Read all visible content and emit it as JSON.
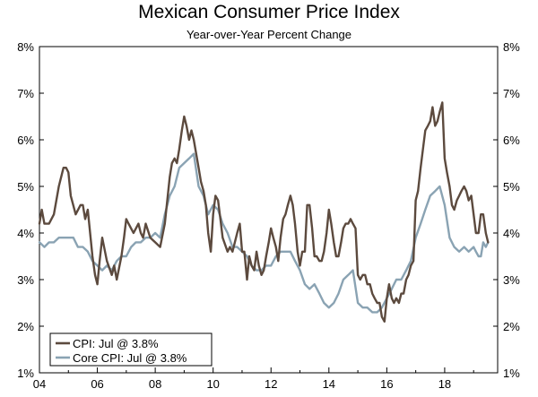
{
  "chart_data": {
    "type": "line",
    "title": "Mexican Consumer Price Index",
    "subtitle": "Year-over-Year Percent Change",
    "xlabel": "",
    "ylabel": "",
    "xlim": [
      2004.0,
      2019.83
    ],
    "ylim": [
      1,
      8
    ],
    "x_ticks": [
      {
        "value": 2004,
        "label": "04"
      },
      {
        "value": 2006,
        "label": "06"
      },
      {
        "value": 2008,
        "label": "08"
      },
      {
        "value": 2010,
        "label": "10"
      },
      {
        "value": 2012,
        "label": "12"
      },
      {
        "value": 2014,
        "label": "14"
      },
      {
        "value": 2016,
        "label": "16"
      },
      {
        "value": 2018,
        "label": "18"
      }
    ],
    "y_ticks": [
      1,
      2,
      3,
      4,
      5,
      6,
      7,
      8
    ],
    "y_tick_labels": [
      "1%",
      "2%",
      "3%",
      "4%",
      "5%",
      "6%",
      "7%",
      "8%"
    ],
    "legend_position": "bottom-left",
    "series": [
      {
        "name": "CPI: Jul @ 3.8%",
        "color": "#5c4a3e",
        "points": [
          [
            2004.0,
            4.2
          ],
          [
            2004.08,
            4.5
          ],
          [
            2004.17,
            4.2
          ],
          [
            2004.33,
            4.2
          ],
          [
            2004.5,
            4.4
          ],
          [
            2004.67,
            5.0
          ],
          [
            2004.83,
            5.4
          ],
          [
            2004.92,
            5.4
          ],
          [
            2005.0,
            5.3
          ],
          [
            2005.08,
            4.8
          ],
          [
            2005.25,
            4.4
          ],
          [
            2005.42,
            4.6
          ],
          [
            2005.5,
            4.6
          ],
          [
            2005.58,
            4.3
          ],
          [
            2005.67,
            4.5
          ],
          [
            2005.83,
            3.5
          ],
          [
            2005.92,
            3.1
          ],
          [
            2006.0,
            2.9
          ],
          [
            2006.08,
            3.4
          ],
          [
            2006.17,
            3.9
          ],
          [
            2006.33,
            3.4
          ],
          [
            2006.5,
            3.1
          ],
          [
            2006.58,
            3.3
          ],
          [
            2006.67,
            3.0
          ],
          [
            2006.83,
            3.5
          ],
          [
            2006.92,
            3.9
          ],
          [
            2007.0,
            4.3
          ],
          [
            2007.08,
            4.2
          ],
          [
            2007.25,
            4.0
          ],
          [
            2007.42,
            4.2
          ],
          [
            2007.5,
            4.0
          ],
          [
            2007.58,
            3.9
          ],
          [
            2007.67,
            4.2
          ],
          [
            2007.83,
            3.9
          ],
          [
            2008.0,
            3.8
          ],
          [
            2008.17,
            3.7
          ],
          [
            2008.33,
            4.2
          ],
          [
            2008.5,
            5.2
          ],
          [
            2008.58,
            5.5
          ],
          [
            2008.67,
            5.6
          ],
          [
            2008.75,
            5.5
          ],
          [
            2008.83,
            5.8
          ],
          [
            2008.92,
            6.2
          ],
          [
            2009.0,
            6.5
          ],
          [
            2009.08,
            6.3
          ],
          [
            2009.17,
            6.0
          ],
          [
            2009.25,
            6.2
          ],
          [
            2009.33,
            6.0
          ],
          [
            2009.5,
            5.4
          ],
          [
            2009.58,
            5.1
          ],
          [
            2009.67,
            4.9
          ],
          [
            2009.75,
            4.6
          ],
          [
            2009.83,
            4.0
          ],
          [
            2009.92,
            3.6
          ],
          [
            2010.0,
            4.4
          ],
          [
            2010.08,
            4.8
          ],
          [
            2010.17,
            4.7
          ],
          [
            2010.25,
            4.3
          ],
          [
            2010.33,
            3.9
          ],
          [
            2010.5,
            3.6
          ],
          [
            2010.58,
            3.7
          ],
          [
            2010.67,
            3.6
          ],
          [
            2010.75,
            3.8
          ],
          [
            2010.83,
            4.0
          ],
          [
            2010.92,
            4.2
          ],
          [
            2011.0,
            3.6
          ],
          [
            2011.08,
            3.6
          ],
          [
            2011.17,
            3.0
          ],
          [
            2011.25,
            3.5
          ],
          [
            2011.33,
            3.3
          ],
          [
            2011.42,
            3.2
          ],
          [
            2011.5,
            3.6
          ],
          [
            2011.58,
            3.3
          ],
          [
            2011.67,
            3.1
          ],
          [
            2011.75,
            3.2
          ],
          [
            2011.83,
            3.5
          ],
          [
            2011.92,
            3.8
          ],
          [
            2012.0,
            4.1
          ],
          [
            2012.08,
            3.9
          ],
          [
            2012.17,
            3.7
          ],
          [
            2012.25,
            3.4
          ],
          [
            2012.33,
            3.9
          ],
          [
            2012.42,
            4.3
          ],
          [
            2012.5,
            4.4
          ],
          [
            2012.58,
            4.6
          ],
          [
            2012.67,
            4.8
          ],
          [
            2012.75,
            4.6
          ],
          [
            2012.83,
            4.2
          ],
          [
            2012.92,
            3.6
          ],
          [
            2013.0,
            3.3
          ],
          [
            2013.08,
            3.6
          ],
          [
            2013.17,
            3.6
          ],
          [
            2013.25,
            4.6
          ],
          [
            2013.33,
            4.6
          ],
          [
            2013.42,
            4.1
          ],
          [
            2013.5,
            3.5
          ],
          [
            2013.58,
            3.5
          ],
          [
            2013.67,
            3.4
          ],
          [
            2013.75,
            3.4
          ],
          [
            2013.83,
            3.6
          ],
          [
            2013.92,
            4.0
          ],
          [
            2014.0,
            4.5
          ],
          [
            2014.08,
            4.2
          ],
          [
            2014.17,
            3.8
          ],
          [
            2014.25,
            3.5
          ],
          [
            2014.33,
            3.5
          ],
          [
            2014.42,
            3.8
          ],
          [
            2014.5,
            4.1
          ],
          [
            2014.58,
            4.2
          ],
          [
            2014.67,
            4.2
          ],
          [
            2014.75,
            4.3
          ],
          [
            2014.83,
            4.2
          ],
          [
            2014.92,
            4.1
          ],
          [
            2015.0,
            3.1
          ],
          [
            2015.08,
            3.0
          ],
          [
            2015.17,
            3.1
          ],
          [
            2015.25,
            3.1
          ],
          [
            2015.33,
            2.9
          ],
          [
            2015.42,
            2.9
          ],
          [
            2015.5,
            2.7
          ],
          [
            2015.58,
            2.6
          ],
          [
            2015.67,
            2.5
          ],
          [
            2015.75,
            2.5
          ],
          [
            2015.83,
            2.2
          ],
          [
            2015.92,
            2.1
          ],
          [
            2016.0,
            2.6
          ],
          [
            2016.08,
            2.9
          ],
          [
            2016.17,
            2.6
          ],
          [
            2016.25,
            2.5
          ],
          [
            2016.33,
            2.6
          ],
          [
            2016.42,
            2.5
          ],
          [
            2016.5,
            2.7
          ],
          [
            2016.58,
            2.7
          ],
          [
            2016.67,
            3.0
          ],
          [
            2016.75,
            3.1
          ],
          [
            2016.83,
            3.3
          ],
          [
            2016.92,
            3.4
          ],
          [
            2017.0,
            4.7
          ],
          [
            2017.08,
            4.9
          ],
          [
            2017.17,
            5.4
          ],
          [
            2017.25,
            5.8
          ],
          [
            2017.33,
            6.2
          ],
          [
            2017.42,
            6.3
          ],
          [
            2017.5,
            6.4
          ],
          [
            2017.58,
            6.7
          ],
          [
            2017.67,
            6.3
          ],
          [
            2017.75,
            6.4
          ],
          [
            2017.83,
            6.6
          ],
          [
            2017.92,
            6.8
          ],
          [
            2018.0,
            5.6
          ],
          [
            2018.08,
            5.3
          ],
          [
            2018.17,
            5.0
          ],
          [
            2018.25,
            4.6
          ],
          [
            2018.33,
            4.5
          ],
          [
            2018.42,
            4.7
          ],
          [
            2018.5,
            4.8
          ],
          [
            2018.58,
            4.9
          ],
          [
            2018.67,
            5.0
          ],
          [
            2018.75,
            4.9
          ],
          [
            2018.83,
            4.7
          ],
          [
            2018.92,
            4.8
          ],
          [
            2019.0,
            4.4
          ],
          [
            2019.08,
            4.0
          ],
          [
            2019.17,
            4.0
          ],
          [
            2019.25,
            4.4
          ],
          [
            2019.33,
            4.4
          ],
          [
            2019.42,
            4.0
          ],
          [
            2019.5,
            3.8
          ]
        ]
      },
      {
        "name": "Core CPI: Jul @ 3.8%",
        "color": "#8aa3b3",
        "points": [
          [
            2004.0,
            3.8
          ],
          [
            2004.17,
            3.7
          ],
          [
            2004.33,
            3.8
          ],
          [
            2004.5,
            3.8
          ],
          [
            2004.67,
            3.9
          ],
          [
            2004.83,
            3.9
          ],
          [
            2005.0,
            3.9
          ],
          [
            2005.17,
            3.9
          ],
          [
            2005.33,
            3.7
          ],
          [
            2005.5,
            3.7
          ],
          [
            2005.67,
            3.6
          ],
          [
            2005.83,
            3.4
          ],
          [
            2006.0,
            3.3
          ],
          [
            2006.17,
            3.2
          ],
          [
            2006.33,
            3.3
          ],
          [
            2006.5,
            3.2
          ],
          [
            2006.67,
            3.4
          ],
          [
            2006.83,
            3.5
          ],
          [
            2007.0,
            3.5
          ],
          [
            2007.17,
            3.7
          ],
          [
            2007.33,
            3.8
          ],
          [
            2007.5,
            3.8
          ],
          [
            2007.67,
            3.9
          ],
          [
            2007.83,
            3.9
          ],
          [
            2008.0,
            4.0
          ],
          [
            2008.17,
            3.9
          ],
          [
            2008.33,
            4.4
          ],
          [
            2008.5,
            4.8
          ],
          [
            2008.67,
            5.0
          ],
          [
            2008.83,
            5.4
          ],
          [
            2009.0,
            5.5
          ],
          [
            2009.17,
            5.6
          ],
          [
            2009.33,
            5.7
          ],
          [
            2009.5,
            5.0
          ],
          [
            2009.67,
            4.8
          ],
          [
            2009.83,
            4.4
          ],
          [
            2010.0,
            4.6
          ],
          [
            2010.17,
            4.5
          ],
          [
            2010.33,
            4.2
          ],
          [
            2010.5,
            4.0
          ],
          [
            2010.67,
            3.7
          ],
          [
            2010.83,
            3.7
          ],
          [
            2011.0,
            3.6
          ],
          [
            2011.17,
            3.5
          ],
          [
            2011.33,
            3.3
          ],
          [
            2011.5,
            3.2
          ],
          [
            2011.67,
            3.2
          ],
          [
            2011.83,
            3.3
          ],
          [
            2012.0,
            3.3
          ],
          [
            2012.17,
            3.5
          ],
          [
            2012.33,
            3.6
          ],
          [
            2012.5,
            3.6
          ],
          [
            2012.67,
            3.6
          ],
          [
            2012.83,
            3.4
          ],
          [
            2013.0,
            3.2
          ],
          [
            2013.17,
            2.9
          ],
          [
            2013.33,
            2.8
          ],
          [
            2013.5,
            2.9
          ],
          [
            2013.67,
            2.7
          ],
          [
            2013.83,
            2.5
          ],
          [
            2014.0,
            2.4
          ],
          [
            2014.17,
            2.5
          ],
          [
            2014.33,
            2.7
          ],
          [
            2014.5,
            3.0
          ],
          [
            2014.67,
            3.1
          ],
          [
            2014.83,
            3.2
          ],
          [
            2015.0,
            2.5
          ],
          [
            2015.17,
            2.4
          ],
          [
            2015.33,
            2.4
          ],
          [
            2015.5,
            2.3
          ],
          [
            2015.67,
            2.3
          ],
          [
            2015.83,
            2.4
          ],
          [
            2016.0,
            2.6
          ],
          [
            2016.17,
            2.8
          ],
          [
            2016.33,
            3.0
          ],
          [
            2016.5,
            3.0
          ],
          [
            2016.67,
            3.2
          ],
          [
            2016.83,
            3.4
          ],
          [
            2017.0,
            3.9
          ],
          [
            2017.17,
            4.2
          ],
          [
            2017.33,
            4.5
          ],
          [
            2017.5,
            4.8
          ],
          [
            2017.67,
            4.9
          ],
          [
            2017.83,
            5.0
          ],
          [
            2018.0,
            4.6
          ],
          [
            2018.17,
            3.9
          ],
          [
            2018.33,
            3.7
          ],
          [
            2018.5,
            3.6
          ],
          [
            2018.67,
            3.7
          ],
          [
            2018.83,
            3.6
          ],
          [
            2019.0,
            3.7
          ],
          [
            2019.08,
            3.6
          ],
          [
            2019.17,
            3.5
          ],
          [
            2019.25,
            3.5
          ],
          [
            2019.33,
            3.8
          ],
          [
            2019.42,
            3.7
          ],
          [
            2019.5,
            3.8
          ]
        ]
      }
    ]
  }
}
